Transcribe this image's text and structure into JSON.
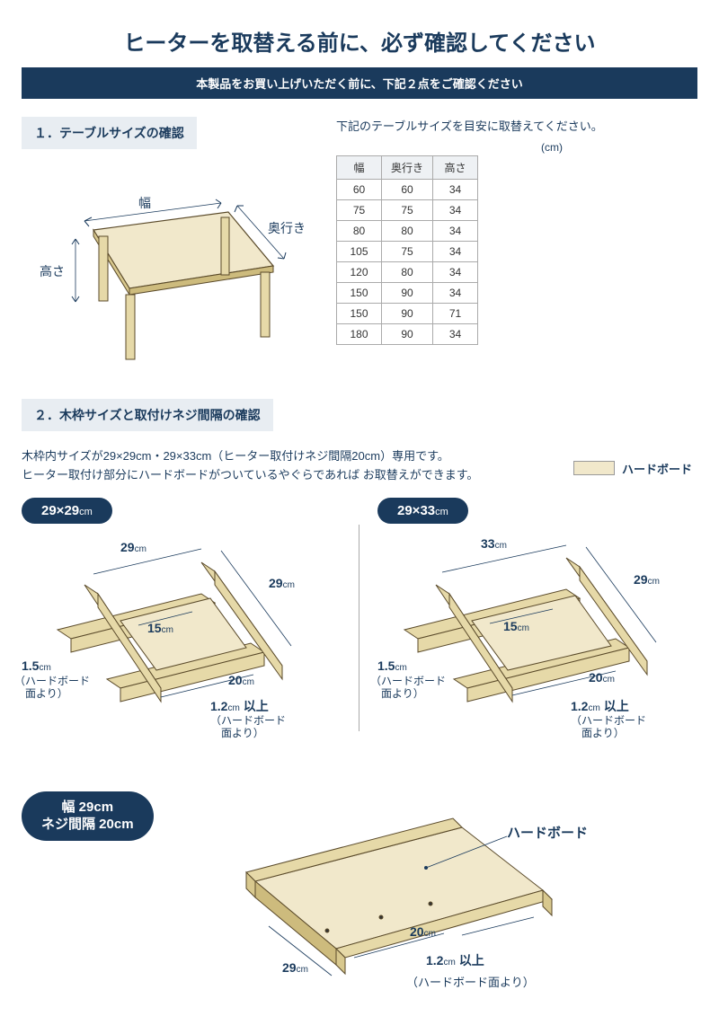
{
  "colors": {
    "primary": "#1a3a5c",
    "headerBg": "#e8edf2",
    "wood": "#e6d9a8",
    "woodDark": "#5a4a2a",
    "cream": "#f1e8cb",
    "tableBorder": "#aaaaaa",
    "tableHeaderBg": "#eef1f4"
  },
  "typography": {
    "mainTitleSize": 24,
    "subBarSize": 13,
    "sectionHeaderSize": 14,
    "bodySize": 13,
    "labelSize": 14
  },
  "mainTitle": "ヒーターを取替える前に、必ず確認してください",
  "subBar": "本製品をお買い上げいただく前に、下記２点をご確認ください",
  "section1": {
    "header": "１．テーブルサイズの確認",
    "guidance": "下記のテーブルサイズを目安に取替えてください。",
    "unit": "(cm)",
    "diagramLabels": {
      "width": "幅",
      "depth": "奥行き",
      "height": "高さ"
    },
    "table": {
      "columns": [
        "幅",
        "奥行き",
        "高さ"
      ],
      "rows": [
        [
          60,
          60,
          34
        ],
        [
          75,
          75,
          34
        ],
        [
          80,
          80,
          34
        ],
        [
          105,
          75,
          34
        ],
        [
          120,
          80,
          34
        ],
        [
          150,
          90,
          34
        ],
        [
          150,
          90,
          71
        ],
        [
          180,
          90,
          34
        ]
      ]
    }
  },
  "section2": {
    "header": "２．木枠サイズと取付けネジ間隔の確認",
    "body1": "木枠内サイズが29×29cm・29×33cm（ヒーター取付けネジ間隔20cm）専用です。",
    "body2": "ヒーター取付け部分にハードボードがついているやぐらであれば お取替えができます。",
    "legendLabel": "ハードボード",
    "frameA": {
      "pill": "29×29",
      "cmSuffix": "cm",
      "dims": {
        "topA": "29",
        "topB": "29",
        "inner": "15",
        "screw": "20",
        "heightNote": "1.5",
        "heightParen": "ハードボード\n面より",
        "bottomNote": "1.2",
        "bottomSuffix": "以上",
        "bottomParen": "ハードボード\n面より"
      }
    },
    "frameB": {
      "pill": "29×33",
      "cmSuffix": "cm",
      "dims": {
        "topA": "33",
        "topB": "29",
        "inner": "15",
        "screw": "20",
        "heightNote": "1.5",
        "heightParen": "ハードボード\n面より",
        "bottomNote": "1.2",
        "bottomSuffix": "以上",
        "bottomParen": "ハードボード\n面より"
      }
    },
    "board": {
      "pillLine1": "幅 29cm",
      "pillLine2": "ネジ間隔 20cm",
      "labels": {
        "hardboard": "ハードボード",
        "w29": "29",
        "w20": "20",
        "thick": "1.2",
        "thickSuffix": "以上",
        "thickParen": "（ハードボード面より）"
      }
    }
  },
  "cmUnit": "cm"
}
